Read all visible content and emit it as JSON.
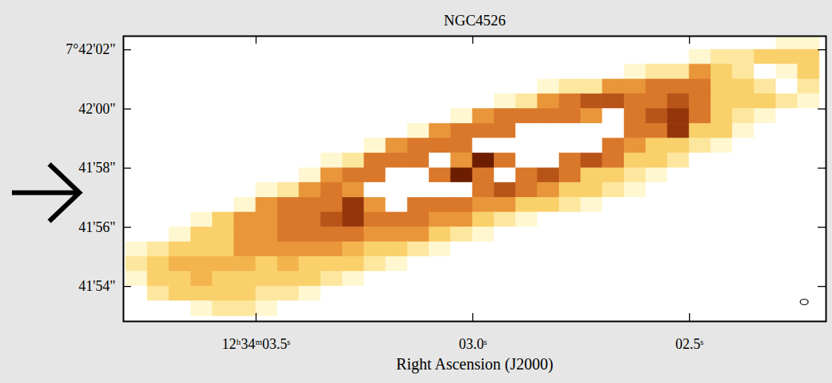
{
  "chart_data": {
    "type": "heatmap",
    "title": "NGC4526",
    "x_label": "Right Ascension (J2000)",
    "xlim": [
      3.806,
      2.185
    ],
    "ylim": [
      2512.82,
      2522.46
    ],
    "xticks": [
      {
        "value": 3.5,
        "label": "12ʰ34ᵐ03.5ˢ"
      },
      {
        "value": 3.0,
        "label": "03.0ˢ"
      },
      {
        "value": 2.5,
        "label": "02.5ˢ"
      }
    ],
    "yticks": [
      {
        "value": 2522,
        "label": "7°42'02\""
      },
      {
        "value": 2520,
        "label": "42'00\""
      },
      {
        "value": 2518,
        "label": "41'58\""
      },
      {
        "value": 2516,
        "label": "41'56\""
      },
      {
        "value": 2514,
        "label": "41'54\""
      }
    ],
    "cells": {
      "x": [
        3.775,
        3.725,
        3.675,
        3.625,
        3.575,
        3.525,
        3.475,
        3.425,
        3.375,
        3.325,
        3.275,
        3.225,
        3.175,
        3.125,
        3.075,
        3.025,
        2.975,
        2.925,
        2.875,
        2.825,
        2.775,
        2.725,
        2.675,
        2.625,
        2.575,
        2.525,
        2.475,
        2.425,
        2.375,
        2.325,
        2.275,
        2.225
      ],
      "y": [
        2522.25,
        2521.75,
        2521.25,
        2520.75,
        2520.25,
        2519.75,
        2519.25,
        2518.75,
        2518.25,
        2517.75,
        2517.25,
        2516.75,
        2516.25,
        2515.75,
        2515.25,
        2514.75,
        2514.25,
        2513.75,
        2513.25
      ],
      "values": [
        [
          0,
          0,
          0,
          0,
          0,
          0,
          0,
          0,
          0,
          0,
          0,
          0,
          0,
          0,
          0,
          0,
          0,
          0,
          0,
          0,
          0,
          0,
          0,
          0,
          0,
          0,
          0,
          0,
          0,
          0,
          1,
          1
        ],
        [
          0,
          0,
          0,
          0,
          0,
          0,
          0,
          0,
          0,
          0,
          0,
          0,
          0,
          0,
          0,
          0,
          0,
          0,
          0,
          0,
          0,
          0,
          0,
          0,
          0,
          0,
          1,
          2,
          2,
          3,
          3,
          3
        ],
        [
          0,
          0,
          0,
          0,
          0,
          0,
          0,
          0,
          0,
          0,
          0,
          0,
          0,
          0,
          0,
          0,
          0,
          0,
          0,
          0,
          0,
          0,
          0,
          1,
          2,
          2,
          5,
          3,
          2,
          0,
          1,
          3
        ],
        [
          0,
          0,
          0,
          0,
          0,
          0,
          0,
          0,
          0,
          0,
          0,
          0,
          0,
          0,
          0,
          0,
          0,
          0,
          0,
          1,
          2,
          2,
          5,
          5,
          6,
          6,
          6,
          3,
          3,
          2,
          0,
          2
        ],
        [
          0,
          0,
          0,
          0,
          0,
          0,
          0,
          0,
          0,
          0,
          0,
          0,
          0,
          0,
          0,
          0,
          0,
          1,
          2,
          5,
          6,
          7,
          7,
          6,
          6,
          7,
          6,
          3,
          3,
          3,
          2,
          1
        ],
        [
          0,
          0,
          0,
          0,
          0,
          0,
          0,
          0,
          0,
          0,
          0,
          0,
          0,
          0,
          0,
          1,
          5,
          6,
          6,
          6,
          6,
          5,
          0,
          6,
          7,
          8,
          6,
          3,
          2,
          1,
          0,
          0
        ],
        [
          0,
          0,
          0,
          0,
          0,
          0,
          0,
          0,
          0,
          0,
          0,
          0,
          0,
          1,
          5,
          6,
          6,
          6,
          0,
          0,
          0,
          0,
          0,
          6,
          6,
          8,
          3,
          3,
          1,
          0,
          0,
          0
        ],
        [
          0,
          0,
          0,
          0,
          0,
          0,
          0,
          0,
          0,
          0,
          0,
          1,
          5,
          6,
          6,
          6,
          0,
          0,
          0,
          0,
          0,
          0,
          6,
          5,
          3,
          3,
          2,
          1,
          0,
          0,
          0,
          0
        ],
        [
          0,
          0,
          0,
          0,
          0,
          0,
          0,
          0,
          0,
          1,
          2,
          6,
          6,
          6,
          0,
          5,
          9,
          6,
          0,
          0,
          6,
          7,
          6,
          3,
          3,
          2,
          0,
          0,
          0,
          0,
          0,
          0
        ],
        [
          0,
          0,
          0,
          0,
          0,
          0,
          0,
          0,
          1,
          5,
          6,
          6,
          0,
          0,
          6,
          9,
          6,
          0,
          6,
          7,
          6,
          3,
          3,
          2,
          1,
          0,
          0,
          0,
          0,
          0,
          0,
          0
        ],
        [
          0,
          0,
          0,
          0,
          0,
          0,
          1,
          2,
          5,
          6,
          5,
          0,
          0,
          0,
          0,
          0,
          6,
          7,
          6,
          5,
          3,
          3,
          2,
          1,
          0,
          0,
          0,
          0,
          0,
          0,
          0,
          0
        ],
        [
          0,
          0,
          0,
          0,
          0,
          1,
          5,
          6,
          6,
          6,
          8,
          5,
          0,
          6,
          6,
          6,
          5,
          5,
          3,
          3,
          2,
          1,
          0,
          0,
          0,
          0,
          0,
          0,
          0,
          0,
          0,
          0
        ],
        [
          0,
          0,
          0,
          1,
          3,
          5,
          5,
          6,
          6,
          7,
          8,
          6,
          6,
          6,
          5,
          5,
          3,
          2,
          1,
          0,
          0,
          0,
          0,
          0,
          0,
          0,
          0,
          0,
          0,
          0,
          0,
          0
        ],
        [
          0,
          0,
          1,
          3,
          3,
          5,
          5,
          6,
          6,
          6,
          6,
          5,
          5,
          5,
          3,
          2,
          1,
          0,
          0,
          0,
          0,
          0,
          0,
          0,
          0,
          0,
          0,
          0,
          0,
          0,
          0,
          0
        ],
        [
          1,
          2,
          3,
          3,
          3,
          5,
          5,
          5,
          5,
          5,
          4,
          3,
          3,
          2,
          1,
          0,
          0,
          0,
          0,
          0,
          0,
          0,
          0,
          0,
          0,
          0,
          0,
          0,
          0,
          0,
          0,
          0
        ],
        [
          2,
          3,
          4,
          4,
          4,
          4,
          3,
          4,
          3,
          3,
          3,
          2,
          1,
          0,
          0,
          0,
          0,
          0,
          0,
          0,
          0,
          0,
          0,
          0,
          0,
          0,
          0,
          0,
          0,
          0,
          0,
          0
        ],
        [
          1,
          3,
          3,
          4,
          3,
          3,
          3,
          3,
          3,
          2,
          1,
          0,
          0,
          0,
          0,
          0,
          0,
          0,
          0,
          0,
          0,
          0,
          0,
          0,
          0,
          0,
          0,
          0,
          0,
          0,
          0,
          0
        ],
        [
          0,
          2,
          3,
          3,
          3,
          3,
          2,
          2,
          1,
          0,
          0,
          0,
          0,
          0,
          0,
          0,
          0,
          0,
          0,
          0,
          0,
          0,
          0,
          0,
          0,
          0,
          0,
          0,
          0,
          0,
          0,
          0
        ],
        [
          0,
          0,
          0,
          1,
          2,
          2,
          1,
          0,
          0,
          0,
          0,
          0,
          0,
          0,
          0,
          0,
          0,
          0,
          0,
          0,
          0,
          0,
          0,
          0,
          0,
          0,
          0,
          0,
          0,
          0,
          0,
          0
        ]
      ]
    }
  }
}
